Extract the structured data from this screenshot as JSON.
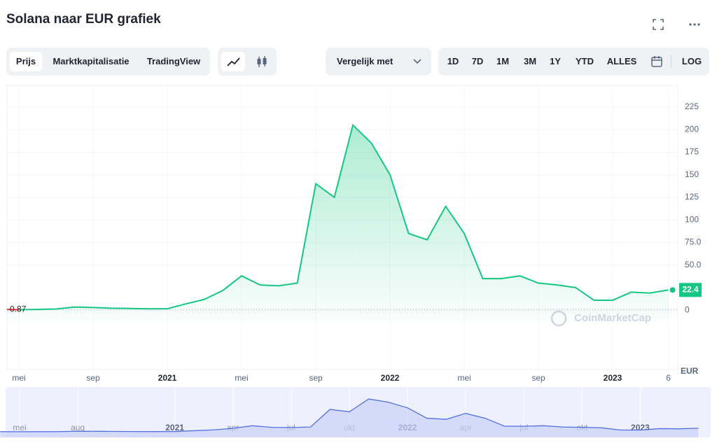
{
  "ui": {
    "title": "Solana naar EUR grafiek",
    "tabs": [
      "Prijs",
      "Marktkapitalisatie",
      "TradingView"
    ],
    "compare": "Vergelijk met",
    "ranges": [
      "1D",
      "7D",
      "1M",
      "3M",
      "1Y",
      "YTD",
      "ALLES"
    ],
    "log": "LOG"
  },
  "chart_data": {
    "type": "line",
    "currency": "EUR",
    "watermark": "CoinMarketCap",
    "x": [
      "2020-04",
      "2020-05",
      "2020-06",
      "2020-07",
      "2020-08",
      "2020-09",
      "2020-10",
      "2020-11",
      "2020-12",
      "2021-01",
      "2021-02",
      "2021-03",
      "2021-04",
      "2021-05",
      "2021-06",
      "2021-07",
      "2021-08",
      "2021-09",
      "2021-10",
      "2021-11",
      "2021-12",
      "2022-01",
      "2022-02",
      "2022-03",
      "2022-04",
      "2022-05",
      "2022-06",
      "2022-07",
      "2022-08",
      "2022-09",
      "2022-10",
      "2022-11",
      "2022-12",
      "2023-01",
      "2023-02",
      "2023-03",
      "2023-04"
    ],
    "series": [
      {
        "color": "#16c784",
        "below_color": "#ea3943",
        "values": [
          0.87,
          0.6,
          0.9,
          1.3,
          3.5,
          3,
          2.2,
          1.9,
          1.5,
          1.6,
          7,
          12,
          22,
          38,
          28,
          27,
          30,
          140,
          125,
          205,
          185,
          150,
          85,
          78,
          115,
          85,
          35,
          35,
          38,
          30,
          28,
          25,
          11,
          11,
          20,
          19,
          22.4
        ]
      }
    ],
    "ylim": [
      -13,
      249
    ],
    "yticks": [
      0,
      {
        "value": 50,
        "label": "50.0"
      },
      {
        "value": 75,
        "label": "75.0"
      },
      100,
      125,
      150,
      175,
      200,
      225
    ],
    "xticks": [
      {
        "value": "2020-05",
        "label": "mei"
      },
      {
        "value": "2020-09",
        "label": "sep"
      },
      {
        "value": "2021-01",
        "label": "2021"
      },
      {
        "value": "2021-05",
        "label": "mei"
      },
      {
        "value": "2021-09",
        "label": "sep"
      },
      {
        "value": "2022-01",
        "label": "2022"
      },
      {
        "value": "2022-05",
        "label": "mei"
      },
      {
        "value": "2022-09",
        "label": "sep"
      },
      {
        "value": "2023-01",
        "label": "2023"
      },
      {
        "value": "2023-04",
        "label": "6"
      }
    ],
    "navigator_xticks": [
      {
        "value": "2020-05",
        "label": "mei"
      },
      {
        "value": "2020-08",
        "label": "aug"
      },
      {
        "value": "2021-01",
        "label": "2021"
      },
      {
        "value": "2021-04",
        "label": "apr"
      },
      {
        "value": "2021-07",
        "label": "jul"
      },
      {
        "value": "2021-10",
        "label": "okt"
      },
      {
        "value": "2022-01",
        "label": "2022"
      },
      {
        "value": "2022-04",
        "label": "apr"
      },
      {
        "value": "2022-07",
        "label": "jul"
      },
      {
        "value": "2022-10",
        "label": "okt"
      },
      {
        "value": "2023-01",
        "label": "2023"
      }
    ],
    "grid": true
  }
}
